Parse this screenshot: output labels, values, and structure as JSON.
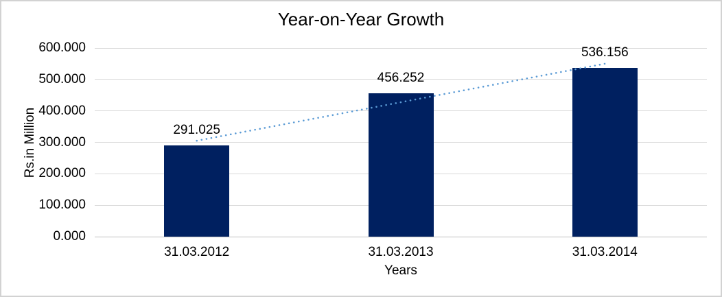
{
  "chart_data": {
    "type": "bar",
    "title": "Year-on-Year Growth",
    "xlabel": "Years",
    "ylabel": "Rs.in Million",
    "categories": [
      "31.03.2012",
      "31.03.2013",
      "31.03.2014"
    ],
    "values": [
      291.025,
      456.252,
      536.156
    ],
    "value_labels": [
      "291.025",
      "456.252",
      "536.156"
    ],
    "y_ticks": [
      0,
      100,
      200,
      300,
      400,
      500,
      600
    ],
    "y_tick_labels": [
      "0.000",
      "100.000",
      "200.000",
      "300.000",
      "400.000",
      "500.000",
      "600.000"
    ],
    "ylim": [
      0,
      600
    ],
    "grid": true,
    "legend": "none",
    "bar_color": "#002060",
    "gridline_color": "#d9d9d9",
    "axis_line_color": "#bfbfbf",
    "trendline": {
      "style": "dotted",
      "color": "#5b9bd5",
      "from_category": "31.03.2012",
      "to_category": "31.03.2014",
      "start_value": 305,
      "end_value": 550
    }
  }
}
